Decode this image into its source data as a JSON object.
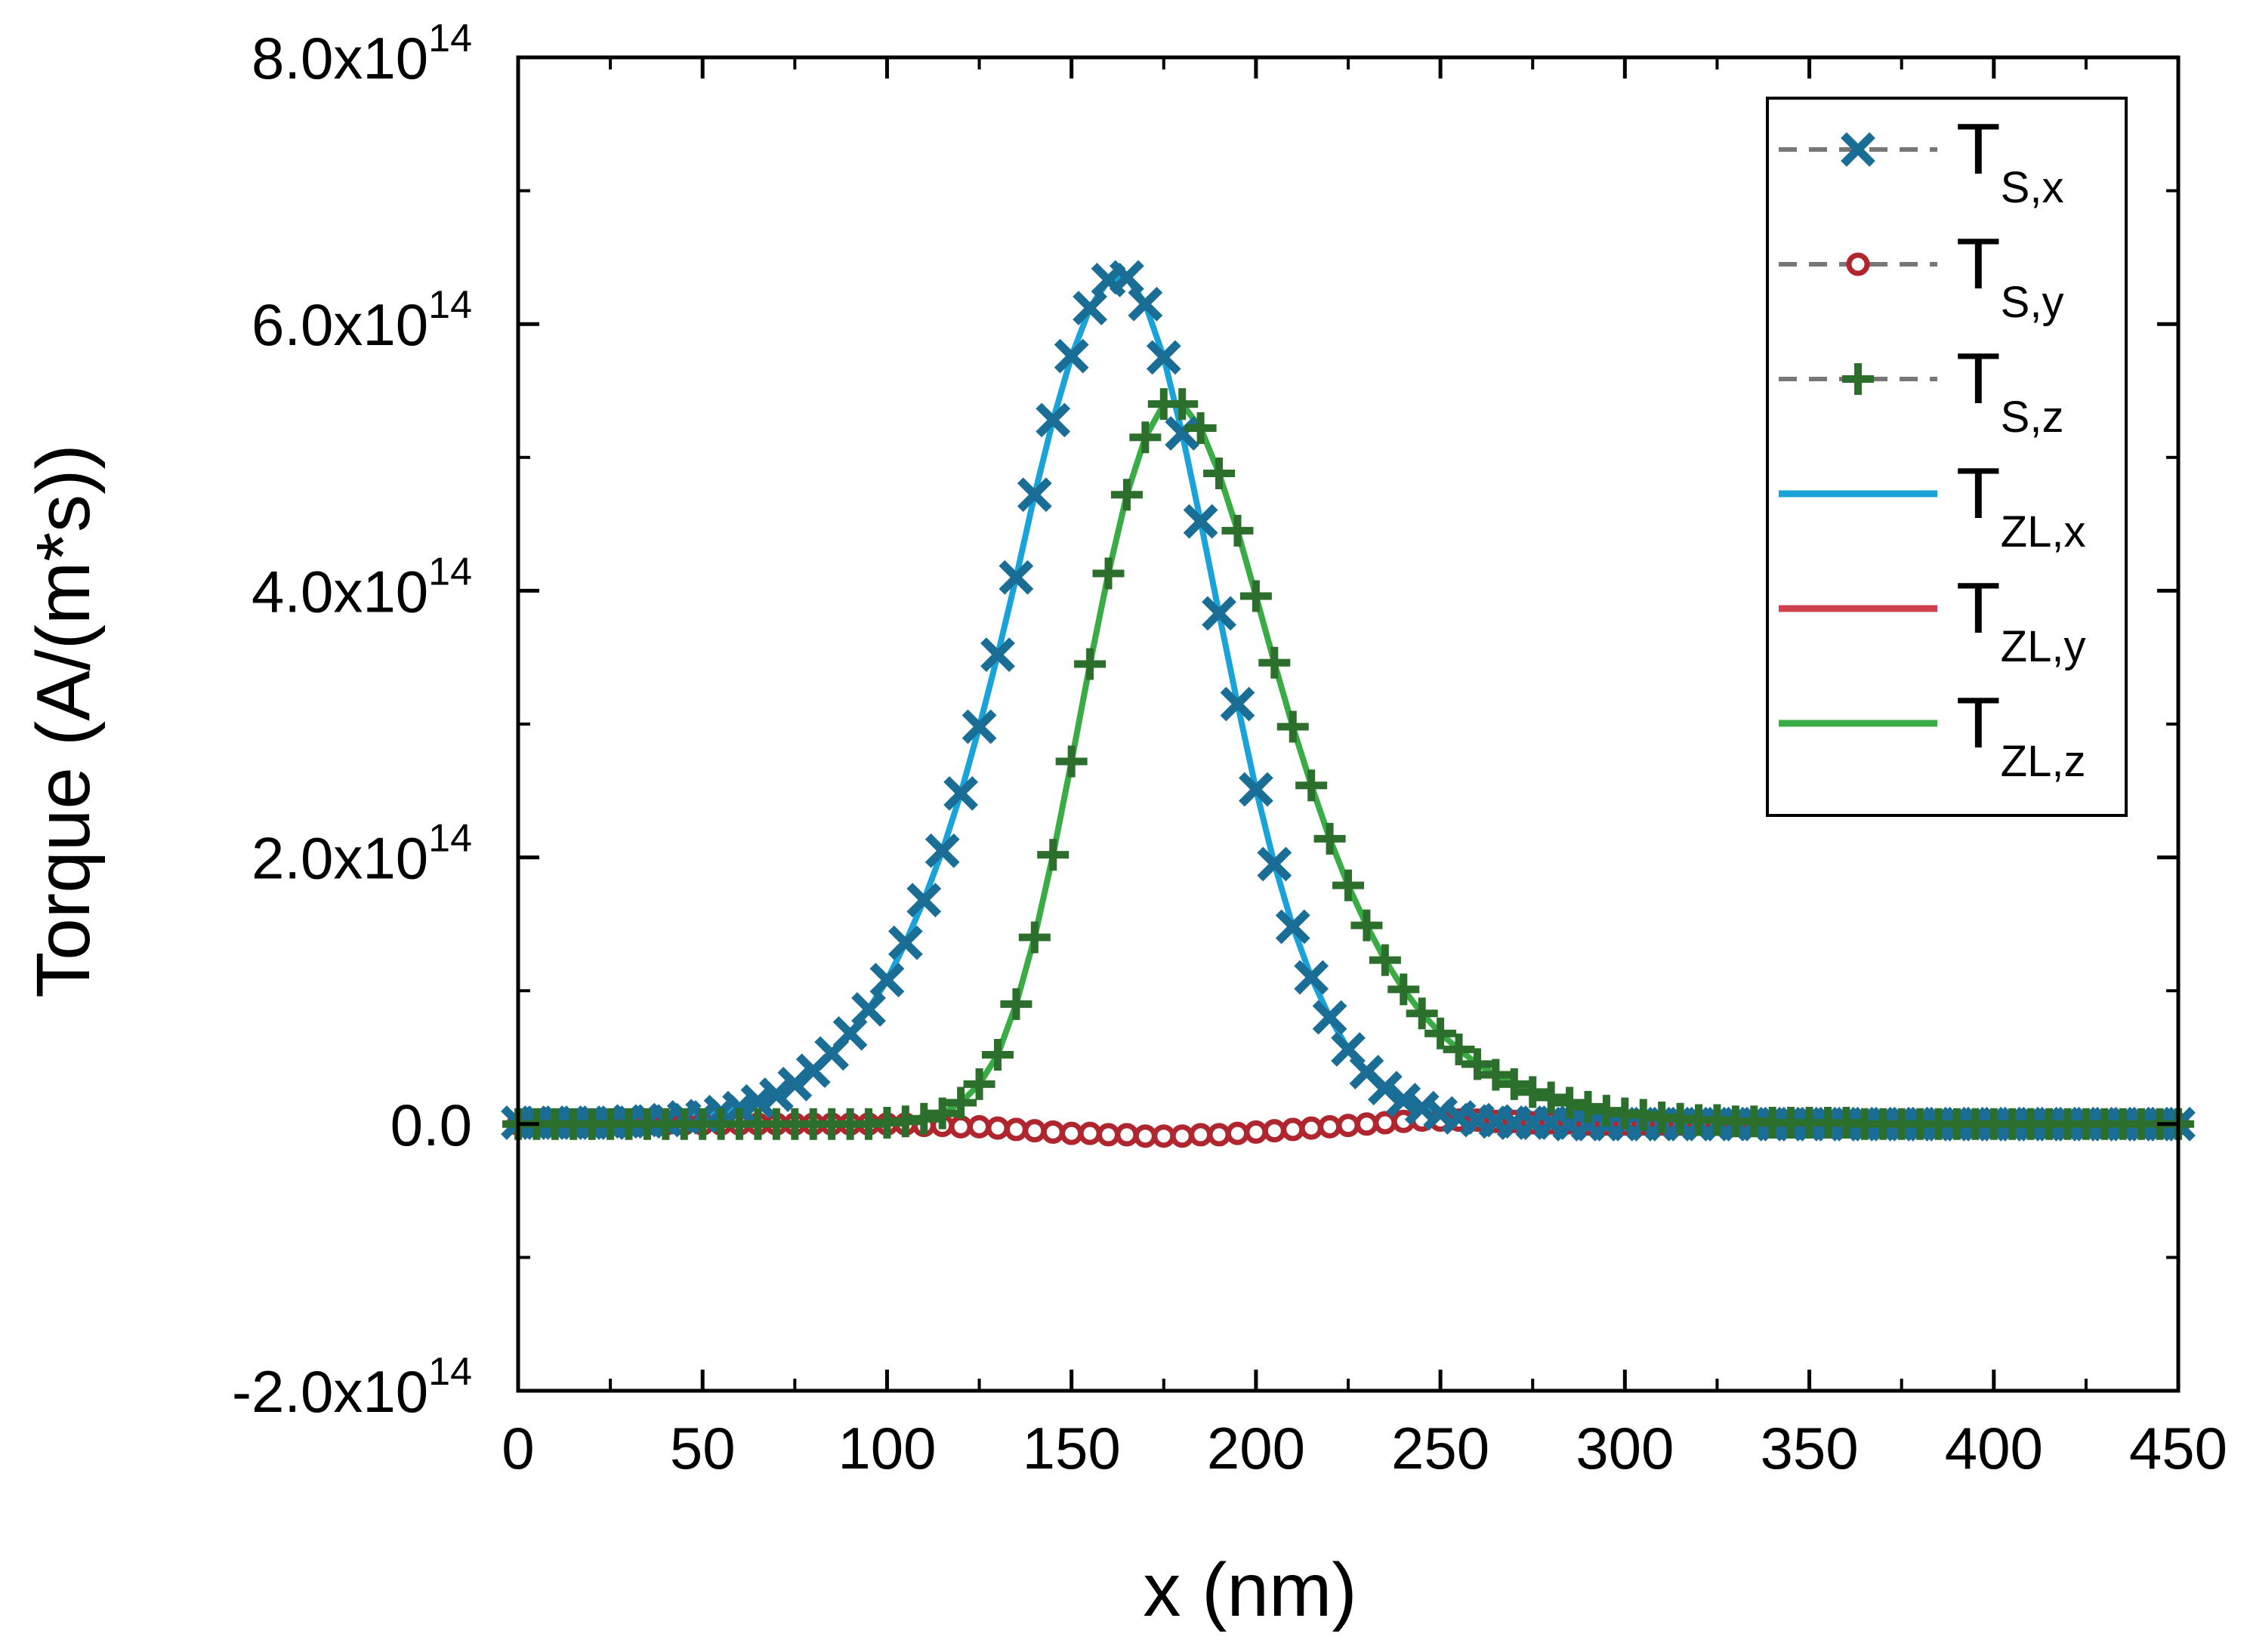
{
  "chart_data": {
    "type": "line",
    "xlabel": "x (nm)",
    "ylabel": "Torque (A/(m*s))",
    "xlim": [
      0,
      450
    ],
    "ylim": [
      -200000000000000.0,
      800000000000000.0
    ],
    "x_ticks": [
      "0",
      "50",
      "100",
      "150",
      "200",
      "250",
      "300",
      "350",
      "400",
      "450"
    ],
    "y_ticks": [
      {
        "mantissa": "-2.0x10",
        "exp": "14",
        "value": -200000000000000.0
      },
      {
        "mantissa": "0.0",
        "exp": "",
        "value": 0
      },
      {
        "mantissa": "2.0x10",
        "exp": "14",
        "value": 200000000000000.0
      },
      {
        "mantissa": "4.0x10",
        "exp": "14",
        "value": 400000000000000.0
      },
      {
        "mantissa": "6.0x10",
        "exp": "14",
        "value": 600000000000000.0
      },
      {
        "mantissa": "8.0x10",
        "exp": "14",
        "value": 800000000000000.0
      }
    ],
    "grid": false,
    "legend_position": "top-right",
    "series": [
      {
        "name": "T_S,x",
        "label_main": "T",
        "label_sub": "S,x",
        "kind": "markers",
        "marker": "x",
        "color": "#1a6e96",
        "x": [
          0,
          5,
          10,
          15,
          20,
          25,
          30,
          35,
          40,
          45,
          50,
          55,
          60,
          65,
          70,
          75,
          80,
          85,
          90,
          95,
          100,
          105,
          110,
          115,
          120,
          125,
          130,
          135,
          140,
          145,
          150,
          155,
          160,
          165,
          170,
          175,
          180,
          185,
          190,
          195,
          200,
          205,
          210,
          215,
          220,
          225,
          230,
          235,
          240,
          245,
          250,
          255,
          260,
          265,
          270,
          275,
          280,
          285,
          290,
          295,
          300,
          305,
          310,
          315,
          320,
          325,
          330,
          335,
          340,
          345,
          350,
          355,
          360,
          365,
          370,
          375,
          380,
          385,
          390,
          395,
          400,
          405,
          410,
          415,
          420,
          425,
          430,
          435,
          440,
          445,
          450
        ],
        "y": [
          0.01,
          0.01,
          0.01,
          0.01,
          0.01,
          0.01,
          0.02,
          0.02,
          0.03,
          0.05,
          0.06,
          0.09,
          0.12,
          0.17,
          0.22,
          0.3,
          0.4,
          0.53,
          0.68,
          0.86,
          1.08,
          1.36,
          1.68,
          2.05,
          2.48,
          2.98,
          3.52,
          4.1,
          4.72,
          5.28,
          5.76,
          6.12,
          6.33,
          6.35,
          6.15,
          5.75,
          5.18,
          4.52,
          3.83,
          3.15,
          2.51,
          1.95,
          1.48,
          1.1,
          0.8,
          0.56,
          0.39,
          0.27,
          0.18,
          0.12,
          0.08,
          0.05,
          0.03,
          0.02,
          0.01,
          0.01,
          0.01,
          0.0,
          0.0,
          0.0,
          0.0,
          0.0,
          0.0,
          0.0,
          0.0,
          0.0,
          0.0,
          0.0,
          0.0,
          0.0,
          0.0,
          0.0,
          0.0,
          0.0,
          0.0,
          0.0,
          0.0,
          0.0,
          0.0,
          0.0,
          0.0,
          0.0,
          0.0,
          0.0,
          0.0,
          0.0,
          0.0,
          0.0,
          0.0,
          0.0,
          0.0
        ],
        "unit_scale": 100000000000000.0
      },
      {
        "name": "T_S,y",
        "label_main": "T",
        "label_sub": "S,y",
        "kind": "markers",
        "marker": "circle",
        "color": "#b0262e",
        "x": [
          0,
          5,
          10,
          15,
          20,
          25,
          30,
          35,
          40,
          45,
          50,
          55,
          60,
          65,
          70,
          75,
          80,
          85,
          90,
          95,
          100,
          105,
          110,
          115,
          120,
          125,
          130,
          135,
          140,
          145,
          150,
          155,
          160,
          165,
          170,
          175,
          180,
          185,
          190,
          195,
          200,
          205,
          210,
          215,
          220,
          225,
          230,
          235,
          240,
          245,
          250,
          255,
          260,
          265,
          270,
          275,
          280,
          285,
          290,
          295,
          300,
          305,
          310,
          315,
          320,
          325,
          330,
          335,
          340,
          345,
          350,
          355,
          360,
          365,
          370,
          375,
          380,
          385,
          390,
          395,
          400,
          405,
          410,
          415,
          420,
          425,
          430,
          435,
          440,
          445,
          450
        ],
        "y": [
          0.0,
          0.0,
          0.0,
          0.0,
          0.0,
          0.0,
          0.0,
          0.0,
          0.0,
          0.0,
          0.0,
          0.0,
          0.0,
          0.0,
          0.0,
          0.0,
          0.0,
          0.0,
          0.0,
          0.0,
          0.0,
          0.0,
          -0.01,
          -0.01,
          -0.02,
          -0.02,
          -0.03,
          -0.04,
          -0.05,
          -0.06,
          -0.07,
          -0.07,
          -0.08,
          -0.08,
          -0.09,
          -0.09,
          -0.09,
          -0.08,
          -0.08,
          -0.07,
          -0.06,
          -0.05,
          -0.04,
          -0.03,
          -0.02,
          -0.01,
          0.0,
          0.01,
          0.02,
          0.03,
          0.03,
          0.03,
          0.03,
          0.02,
          0.02,
          0.01,
          0.01,
          0.01,
          0.0,
          0.0,
          0.0,
          0.0,
          0.0,
          0.0,
          0.0,
          0.0,
          0.0,
          0.0,
          0.0,
          0.0,
          0.0,
          0.0,
          0.0,
          0.0,
          0.0,
          0.0,
          0.0,
          0.0,
          0.0,
          0.0,
          0.0,
          0.0,
          0.0,
          0.0,
          0.0,
          0.0,
          0.0,
          0.0,
          0.0,
          0.0,
          0.0
        ],
        "unit_scale": 100000000000000.0
      },
      {
        "name": "T_S,z",
        "label_main": "T",
        "label_sub": "S,z",
        "kind": "markers",
        "marker": "plus",
        "color": "#2c6e2c",
        "x": [
          0,
          5,
          10,
          15,
          20,
          25,
          30,
          35,
          40,
          45,
          50,
          55,
          60,
          65,
          70,
          75,
          80,
          85,
          90,
          95,
          100,
          105,
          110,
          115,
          120,
          125,
          130,
          135,
          140,
          145,
          150,
          155,
          160,
          165,
          170,
          175,
          180,
          185,
          190,
          195,
          200,
          205,
          210,
          215,
          220,
          225,
          230,
          235,
          240,
          245,
          250,
          255,
          260,
          265,
          270,
          275,
          280,
          285,
          290,
          295,
          300,
          305,
          310,
          315,
          320,
          325,
          330,
          335,
          340,
          345,
          350,
          355,
          360,
          365,
          370,
          375,
          380,
          385,
          390,
          395,
          400,
          405,
          410,
          415,
          420,
          425,
          430,
          435,
          440,
          445,
          450
        ],
        "y": [
          0.0,
          0.0,
          0.0,
          0.0,
          0.0,
          0.0,
          0.0,
          0.0,
          0.0,
          0.0,
          0.0,
          0.0,
          0.0,
          0.0,
          0.0,
          0.0,
          0.0,
          0.0,
          0.0,
          0.0,
          0.01,
          0.02,
          0.04,
          0.08,
          0.16,
          0.3,
          0.52,
          0.9,
          1.4,
          2.02,
          2.72,
          3.45,
          4.13,
          4.72,
          5.15,
          5.4,
          5.4,
          5.22,
          4.88,
          4.45,
          3.96,
          3.46,
          2.98,
          2.54,
          2.14,
          1.79,
          1.49,
          1.23,
          1.01,
          0.83,
          0.68,
          0.56,
          0.45,
          0.37,
          0.3,
          0.24,
          0.2,
          0.16,
          0.13,
          0.1,
          0.08,
          0.07,
          0.05,
          0.04,
          0.03,
          0.03,
          0.02,
          0.02,
          0.01,
          0.01,
          0.01,
          0.01,
          0.01,
          0.0,
          0.0,
          0.0,
          0.0,
          0.0,
          0.0,
          0.0,
          0.0,
          0.0,
          0.0,
          0.0,
          0.0,
          0.0,
          0.0,
          0.0,
          0.0,
          0.0,
          0.0
        ],
        "unit_scale": 100000000000000.0
      },
      {
        "name": "T_ZL,x",
        "label_main": "T",
        "label_sub": "ZL,x",
        "kind": "line",
        "color": "#1aa3d9",
        "ref": 0
      },
      {
        "name": "T_ZL,y",
        "label_main": "T",
        "label_sub": "ZL,y",
        "kind": "line",
        "color": "#d1404f",
        "ref": 1
      },
      {
        "name": "T_ZL,z",
        "label_main": "T",
        "label_sub": "ZL,z",
        "kind": "line",
        "color": "#3aac45",
        "ref": 2
      }
    ]
  }
}
